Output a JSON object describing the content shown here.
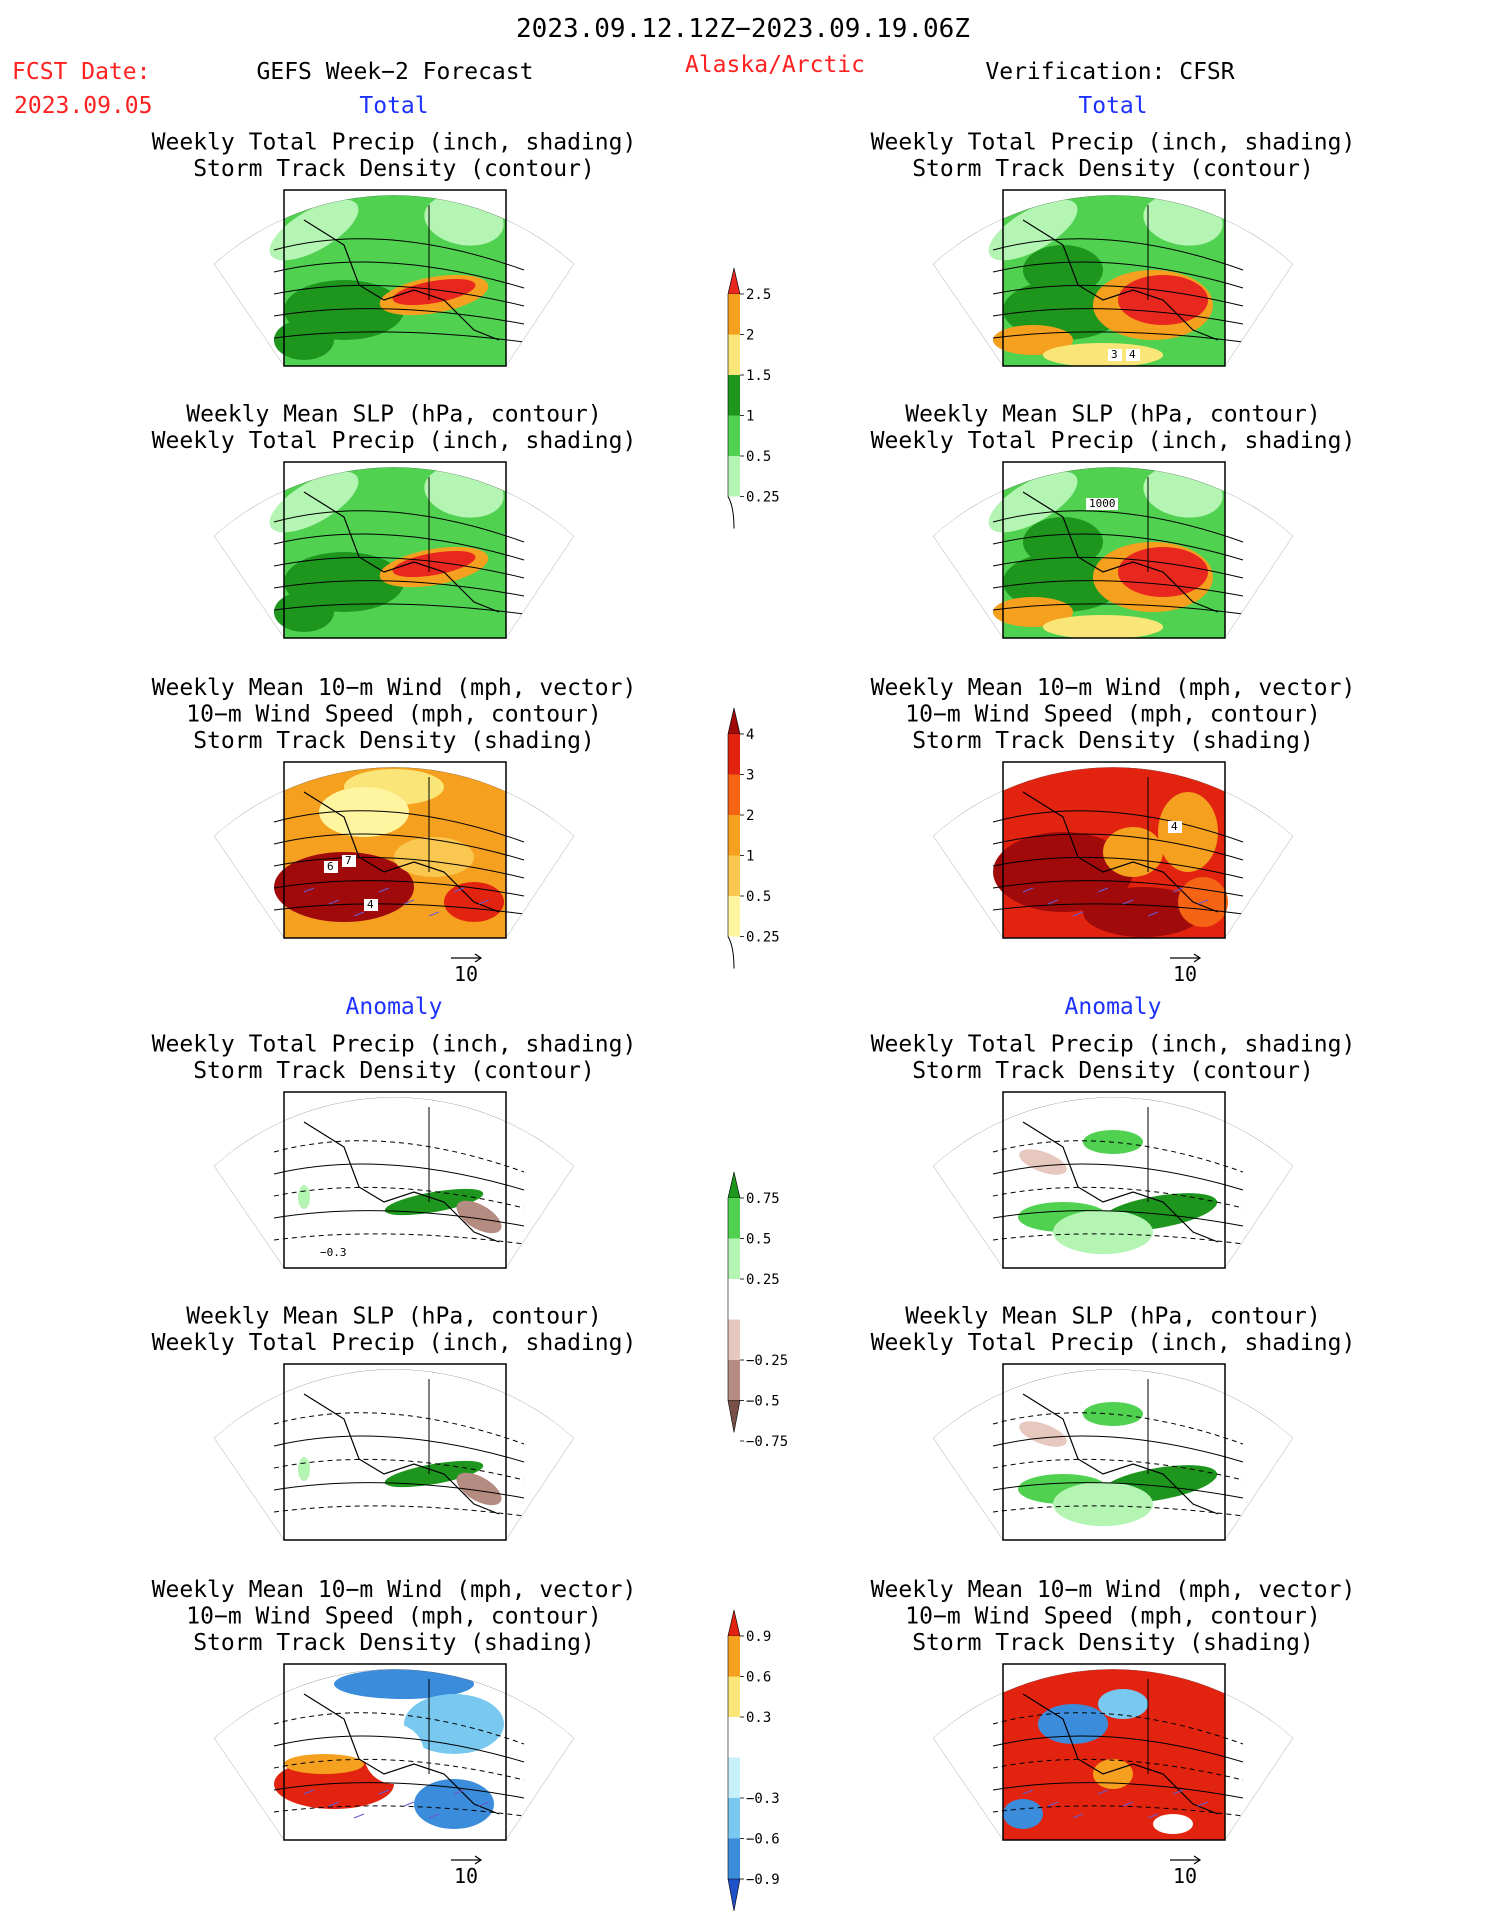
{
  "header": {
    "date_range": "2023.09.12.12Z−2023.09.19.06Z",
    "fcst_label": "FCST Date:",
    "fcst_date": "2023.09.05",
    "forecast_title": "GEFS Week−2 Forecast",
    "region": "Alaska/Arctic",
    "verification": "Verification: CFSR"
  },
  "sections": {
    "total": "Total",
    "anomaly": "Anomaly"
  },
  "panels": [
    {
      "row": 0,
      "col": 0,
      "titles": [
        "Weekly Total Precip (inch, shading)",
        "Storm Track Density (contour)"
      ]
    },
    {
      "row": 0,
      "col": 1,
      "titles": [
        "Weekly Total Precip (inch, shading)",
        "Storm Track Density (contour)"
      ],
      "labels": [
        "3",
        "4"
      ]
    },
    {
      "row": 1,
      "col": 0,
      "titles": [
        "Weekly Mean SLP (hPa, contour)",
        "Weekly Total Precip (inch, shading)"
      ]
    },
    {
      "row": 1,
      "col": 1,
      "titles": [
        "Weekly Mean SLP (hPa, contour)",
        "Weekly Total Precip (inch, shading)"
      ],
      "labels": [
        "1000"
      ]
    },
    {
      "row": 2,
      "col": 0,
      "titles": [
        "Weekly Mean 10−m Wind (mph, vector)",
        "10−m Wind Speed (mph, contour)",
        "Storm Track Density (shading)"
      ],
      "labels": [
        "6",
        "7",
        "4"
      ],
      "vector_ref": "10"
    },
    {
      "row": 2,
      "col": 1,
      "titles": [
        "Weekly Mean 10−m Wind (mph, vector)",
        "10−m Wind Speed (mph, contour)",
        "Storm Track Density (shading)"
      ],
      "labels": [
        "4"
      ],
      "vector_ref": "10"
    },
    {
      "row": 3,
      "col": 0,
      "titles": [
        "Weekly Total Precip (inch, shading)",
        "Storm Track Density (contour)"
      ],
      "labels": [
        "−0.3"
      ]
    },
    {
      "row": 3,
      "col": 1,
      "titles": [
        "Weekly Total Precip (inch, shading)",
        "Storm Track Density (contour)"
      ]
    },
    {
      "row": 4,
      "col": 0,
      "titles": [
        "Weekly Mean SLP (hPa, contour)",
        "Weekly Total Precip (inch, shading)"
      ]
    },
    {
      "row": 4,
      "col": 1,
      "titles": [
        "Weekly Mean SLP (hPa, contour)",
        "Weekly Total Precip (inch, shading)"
      ]
    },
    {
      "row": 5,
      "col": 0,
      "titles": [
        "Weekly Mean 10−m Wind (mph, vector)",
        "10−m Wind Speed (mph, contour)",
        "Storm Track Density (shading)"
      ],
      "vector_ref": "10"
    },
    {
      "row": 5,
      "col": 1,
      "titles": [
        "Weekly Mean 10−m Wind (mph, vector)",
        "10−m Wind Speed (mph, contour)",
        "Storm Track Density (shading)"
      ],
      "vector_ref": "10"
    }
  ],
  "colorbars": [
    {
      "name": "total-precip",
      "labels": [
        "2.5",
        "2",
        "1.5",
        "1",
        "0.5",
        "0.25"
      ],
      "colors": [
        "#e8281e",
        "#f5a01e",
        "#fae678",
        "#1e961e",
        "#50d250",
        "#b4f5b4"
      ]
    },
    {
      "name": "total-storm",
      "labels": [
        "4",
        "3",
        "2",
        "1",
        "0.5",
        "0.25"
      ],
      "colors": [
        "#a00a0a",
        "#e1230f",
        "#f56414",
        "#f5a01e",
        "#fac850",
        "#fff5a0"
      ]
    },
    {
      "name": "anom-precip",
      "labels": [
        "0.75",
        "0.5",
        "0.25",
        "−0.25",
        "−0.5",
        "−0.75"
      ],
      "colors": [
        "#1e961e",
        "#50d250",
        "#b4f5b4",
        "#ffffff",
        "#e6c8be",
        "#b48c82",
        "#785046"
      ]
    },
    {
      "name": "anom-storm",
      "labels": [
        "0.9",
        "0.6",
        "0.3",
        "−0.3",
        "−0.6",
        "−0.9"
      ],
      "colors": [
        "#e1230f",
        "#f5a01e",
        "#fae678",
        "#ffffff",
        "#c8f0fa",
        "#78c8f0",
        "#3c8cdc",
        "#1e50c8"
      ]
    }
  ],
  "colors": {
    "accent_red": "#ff2020",
    "accent_blue": "#1e32ff"
  }
}
